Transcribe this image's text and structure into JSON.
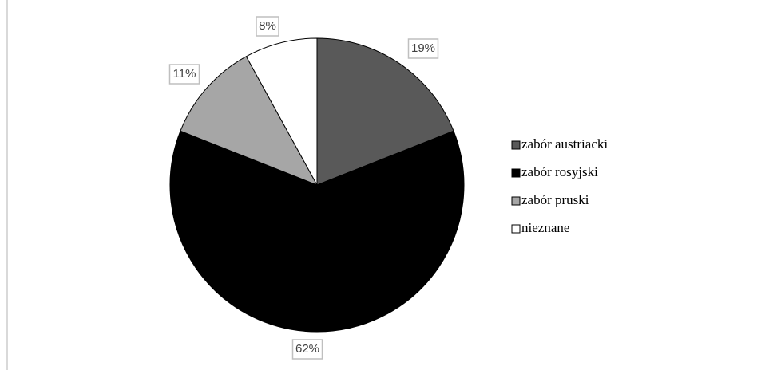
{
  "chart_data": {
    "type": "pie",
    "title": "",
    "legend_position": "right",
    "start_angle_deg": 0,
    "direction": "clockwise",
    "slices": [
      {
        "label": "zabór austriacki",
        "value": 19,
        "data_label": "19%",
        "color": "#595959"
      },
      {
        "label": "zabór rosyjski",
        "value": 62,
        "data_label": "62%",
        "color": "#000000"
      },
      {
        "label": "zabór pruski",
        "value": 11,
        "data_label": "11%",
        "color": "#a6a6a6"
      },
      {
        "label": "nieznane",
        "value": 8,
        "data_label": "8%",
        "color": "#ffffff"
      }
    ]
  }
}
